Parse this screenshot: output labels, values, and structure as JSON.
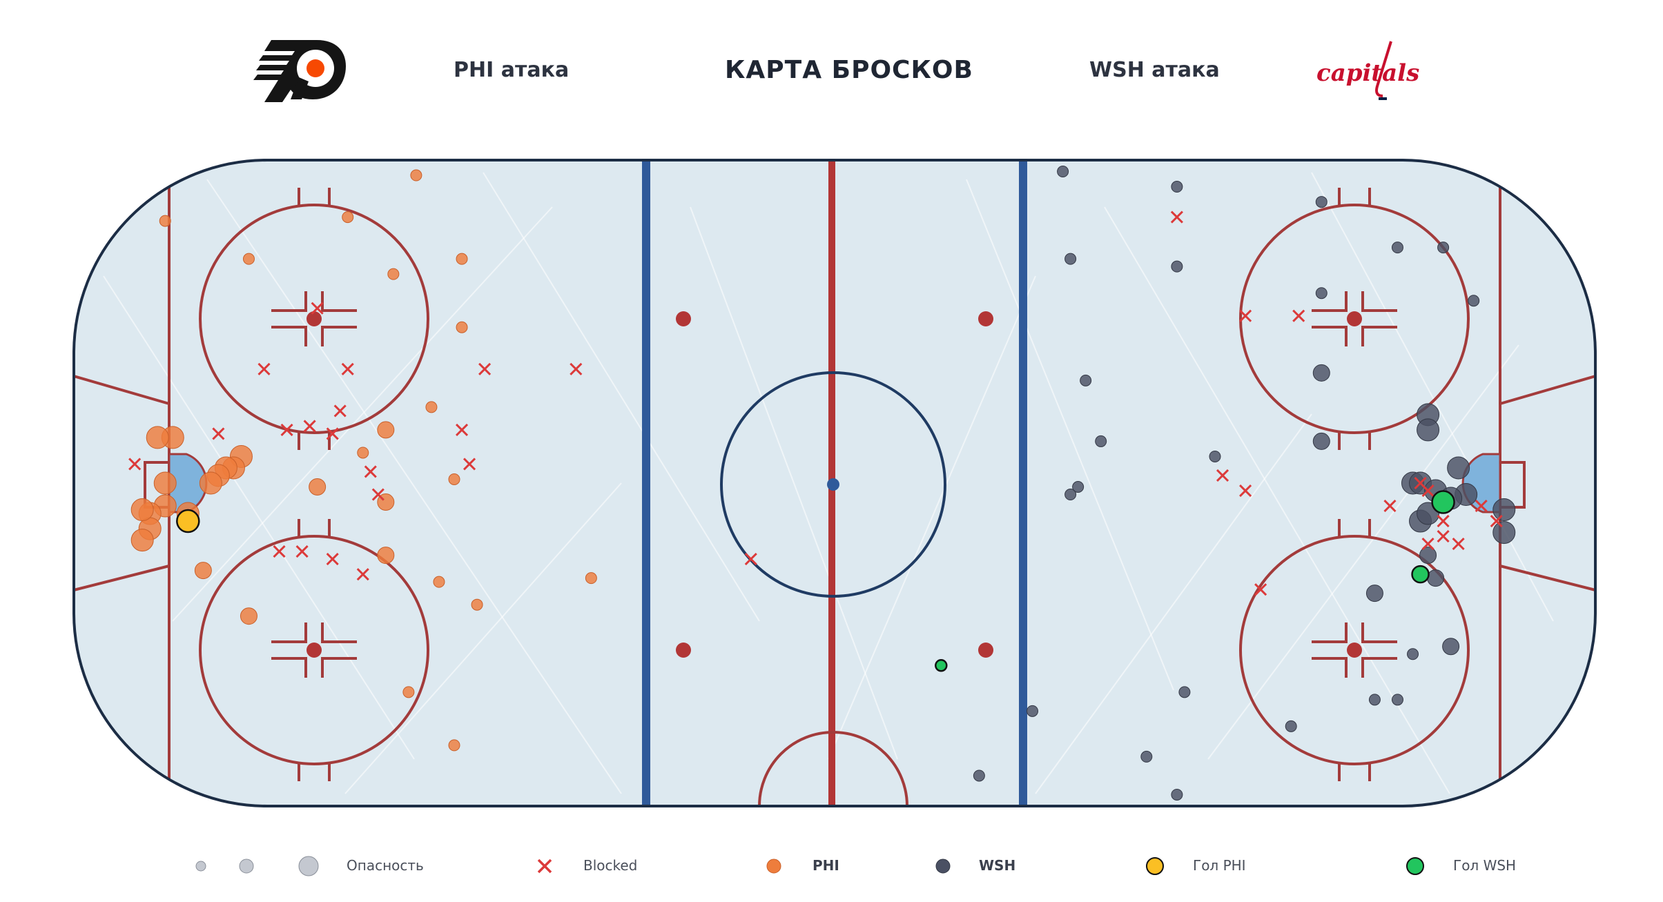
{
  "header": {
    "title": "КАРТА БРОСКОВ",
    "home_label": "PHI атака",
    "away_label": "WSH атака",
    "home_logo": "flyers-logo",
    "away_logo": "capitals-logo",
    "away_logo_text": "capitals"
  },
  "colors": {
    "phi": "#ee7d3c",
    "wsh": "#4a5063",
    "goal_phi": "#fbbf24",
    "goal_wsh": "#22c55e",
    "blocked": "#dc3a3a",
    "ice": "#dde9f0",
    "lines_red": "#a33b3b",
    "lines_blue": "#2f5a9a"
  },
  "legend": {
    "danger_label": "Опасность",
    "blocked_label": "Blocked",
    "phi_label": "PHI",
    "wsh_label": "WSH",
    "goal_phi_label": "Гол PHI",
    "goal_wsh_label": "Гол WSH"
  },
  "chart_data": {
    "type": "scatter",
    "title": "КАРТА БРОСКОВ",
    "xlim": [
      -100,
      100
    ],
    "ylim": [
      -42.5,
      42.5
    ],
    "size_encoding": "danger",
    "series": [
      {
        "name": "PHI",
        "points": [
          {
            "x": -55,
            "y": 40.5,
            "s": 1
          },
          {
            "x": -88,
            "y": 34.5,
            "s": 1
          },
          {
            "x": -64,
            "y": 35,
            "s": 1
          },
          {
            "x": -77,
            "y": 29.5,
            "s": 1
          },
          {
            "x": -49,
            "y": 29.5,
            "s": 1
          },
          {
            "x": -58,
            "y": 27.5,
            "s": 1
          },
          {
            "x": -49,
            "y": 20.5,
            "s": 1
          },
          {
            "x": -53,
            "y": 10,
            "s": 1
          },
          {
            "x": -50,
            "y": 0.5,
            "s": 1
          },
          {
            "x": -59,
            "y": 7,
            "s": 2
          },
          {
            "x": -62,
            "y": 4,
            "s": 1
          },
          {
            "x": -78,
            "y": 3.5,
            "s": 3
          },
          {
            "x": -79,
            "y": 2,
            "s": 3
          },
          {
            "x": -80,
            "y": 2,
            "s": 3
          },
          {
            "x": -81,
            "y": 1,
            "s": 3
          },
          {
            "x": -82,
            "y": 0,
            "s": 3
          },
          {
            "x": -87,
            "y": 6,
            "s": 3
          },
          {
            "x": -89,
            "y": 6,
            "s": 3
          },
          {
            "x": -85,
            "y": -4,
            "s": 3
          },
          {
            "x": -88,
            "y": 0,
            "s": 3
          },
          {
            "x": -88,
            "y": -3,
            "s": 3
          },
          {
            "x": -90,
            "y": -4,
            "s": 3
          },
          {
            "x": -90,
            "y": -6,
            "s": 3
          },
          {
            "x": -91,
            "y": -7.5,
            "s": 3
          },
          {
            "x": -91,
            "y": -3.5,
            "s": 3
          },
          {
            "x": -68,
            "y": -0.5,
            "s": 2
          },
          {
            "x": -59,
            "y": -2.5,
            "s": 2
          },
          {
            "x": -59,
            "y": -9.5,
            "s": 2
          },
          {
            "x": -83,
            "y": -11.5,
            "s": 2
          },
          {
            "x": -77,
            "y": -17.5,
            "s": 2
          },
          {
            "x": -52,
            "y": -13,
            "s": 1
          },
          {
            "x": -47,
            "y": -16,
            "s": 1
          },
          {
            "x": -32,
            "y": -12.5,
            "s": 1
          },
          {
            "x": -56,
            "y": -27.5,
            "s": 1
          },
          {
            "x": -50,
            "y": -34.5,
            "s": 1
          }
        ]
      },
      {
        "name": "WSH",
        "points": [
          {
            "x": 30,
            "y": 41,
            "s": 1
          },
          {
            "x": 45,
            "y": 39,
            "s": 1
          },
          {
            "x": 64,
            "y": 37,
            "s": 1
          },
          {
            "x": 31,
            "y": 29.5,
            "s": 1
          },
          {
            "x": 45,
            "y": 28.5,
            "s": 1
          },
          {
            "x": 74,
            "y": 31,
            "s": 1
          },
          {
            "x": 80,
            "y": 31,
            "s": 1
          },
          {
            "x": 64,
            "y": 25,
            "s": 1
          },
          {
            "x": 84,
            "y": 24,
            "s": 1
          },
          {
            "x": 33,
            "y": 13.5,
            "s": 1
          },
          {
            "x": 64,
            "y": 14.5,
            "s": 2
          },
          {
            "x": 78,
            "y": 9,
            "s": 3
          },
          {
            "x": 78,
            "y": 7,
            "s": 3
          },
          {
            "x": 35,
            "y": 5.5,
            "s": 1
          },
          {
            "x": 64,
            "y": 5.5,
            "s": 2
          },
          {
            "x": 50,
            "y": 3.5,
            "s": 1
          },
          {
            "x": 82,
            "y": 2,
            "s": 3
          },
          {
            "x": 76,
            "y": 0,
            "s": 3
          },
          {
            "x": 77,
            "y": 0,
            "s": 3
          },
          {
            "x": 83,
            "y": -1.5,
            "s": 3
          },
          {
            "x": 79,
            "y": -1,
            "s": 3
          },
          {
            "x": 81,
            "y": -2,
            "s": 3
          },
          {
            "x": 88,
            "y": -3.5,
            "s": 3
          },
          {
            "x": 88,
            "y": -6.5,
            "s": 3
          },
          {
            "x": 31,
            "y": -1.5,
            "s": 1
          },
          {
            "x": 32,
            "y": -0.5,
            "s": 1
          },
          {
            "x": 77,
            "y": -5,
            "s": 3
          },
          {
            "x": 78,
            "y": -4,
            "s": 3
          },
          {
            "x": 78,
            "y": -9.5,
            "s": 2
          },
          {
            "x": 79,
            "y": -12.5,
            "s": 2
          },
          {
            "x": 71,
            "y": -14.5,
            "s": 2
          },
          {
            "x": 76,
            "y": -22.5,
            "s": 1
          },
          {
            "x": 81,
            "y": -21.5,
            "s": 2
          },
          {
            "x": 46,
            "y": -27.5,
            "s": 1
          },
          {
            "x": 71,
            "y": -28.5,
            "s": 1
          },
          {
            "x": 74,
            "y": -28.5,
            "s": 1
          },
          {
            "x": 60,
            "y": -32,
            "s": 1
          },
          {
            "x": 26,
            "y": -30,
            "s": 1
          },
          {
            "x": 41,
            "y": -36,
            "s": 1
          },
          {
            "x": 19,
            "y": -38.5,
            "s": 1
          },
          {
            "x": 45,
            "y": -41,
            "s": 1
          }
        ]
      },
      {
        "name": "Blocked",
        "points": [
          {
            "x": 45,
            "y": 35
          },
          {
            "x": -68,
            "y": 23
          },
          {
            "x": 54,
            "y": 22
          },
          {
            "x": 61,
            "y": 22
          },
          {
            "x": -75,
            "y": 15
          },
          {
            "x": -64,
            "y": 15
          },
          {
            "x": -46,
            "y": 15
          },
          {
            "x": -34,
            "y": 15
          },
          {
            "x": -65,
            "y": 9.5
          },
          {
            "x": -69,
            "y": 7.5
          },
          {
            "x": -72,
            "y": 7
          },
          {
            "x": -81,
            "y": 6.5
          },
          {
            "x": -66,
            "y": 6.5
          },
          {
            "x": -49,
            "y": 7
          },
          {
            "x": -92,
            "y": 2.5
          },
          {
            "x": -61,
            "y": 1.5
          },
          {
            "x": -48,
            "y": 2.5
          },
          {
            "x": -60,
            "y": -1.5
          },
          {
            "x": 51,
            "y": 1
          },
          {
            "x": 54,
            "y": -1
          },
          {
            "x": 77,
            "y": 0
          },
          {
            "x": 78,
            "y": -1
          },
          {
            "x": 73,
            "y": -3
          },
          {
            "x": 80,
            "y": -5
          },
          {
            "x": 85,
            "y": -3
          },
          {
            "x": 87,
            "y": -5
          },
          {
            "x": 78,
            "y": -8
          },
          {
            "x": 80,
            "y": -7
          },
          {
            "x": 82,
            "y": -8
          },
          {
            "x": -73,
            "y": -9
          },
          {
            "x": -70,
            "y": -9
          },
          {
            "x": -66,
            "y": -10
          },
          {
            "x": -62,
            "y": -12
          },
          {
            "x": -11,
            "y": -10
          },
          {
            "x": 56,
            "y": -14
          }
        ]
      },
      {
        "name": "Гол PHI",
        "points": [
          {
            "x": -85,
            "y": -5,
            "s": 3
          }
        ]
      },
      {
        "name": "Гол WSH",
        "points": [
          {
            "x": 80,
            "y": -2.5,
            "s": 3
          },
          {
            "x": 77,
            "y": -12,
            "s": 2
          },
          {
            "x": 14,
            "y": -24,
            "s": 1
          }
        ]
      }
    ],
    "legend": [
      "Опасность",
      "Blocked",
      "PHI",
      "WSH",
      "Гол PHI",
      "Гол WSH"
    ],
    "legend_position": "bottom"
  }
}
